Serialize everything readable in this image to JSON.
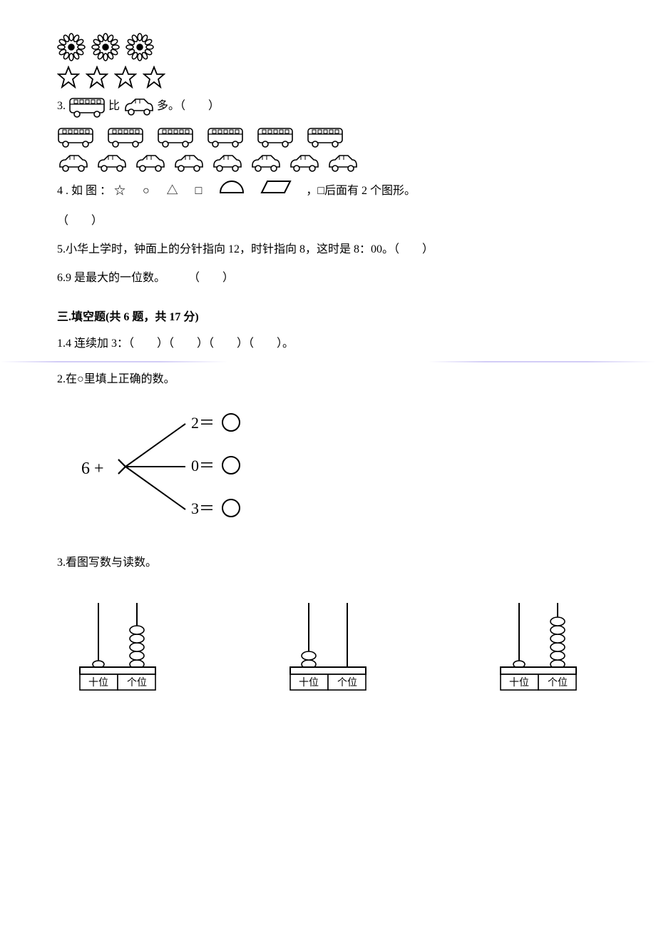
{
  "q2": {
    "flowers_count": 3,
    "stars_count": 4
  },
  "q3": {
    "prefix": "3.",
    "mid": "比",
    "suffix": "多。（　　）",
    "buses_count": 6,
    "cars_count": 8
  },
  "q4": {
    "text_left": "4.如图：☆　○　△　□",
    "text_right": "，□后面有 2 个图形。",
    "blank": "（　　）"
  },
  "q5": {
    "text": "5.小华上学时，钟面上的分针指向 12，时针指向 8，这时是 8：00。（　　）"
  },
  "q6": {
    "text": "6.9 是最大的一位数。　　　（　　）"
  },
  "section3": {
    "header": "三.填空题(共 6 题，共 17 分)",
    "q1": "1.4 连续加 3：（　　）（　　）（　　）（　　）。",
    "q2": "2.在○里填上正确的数。",
    "branch": {
      "left": "6 +",
      "top": "2＝",
      "mid": "0＝",
      "bot": "3＝"
    },
    "q3": "3.看图写数与读数。"
  },
  "abacus": {
    "labels": {
      "tens": "十位",
      "ones": "个位"
    },
    "items": [
      {
        "tens_beads": 0,
        "ones_beads": 5,
        "tens_empty_ring": true
      },
      {
        "tens_beads": 2,
        "ones_beads": 0,
        "tens_empty_ring": false
      },
      {
        "tens_beads": 0,
        "ones_beads": 6,
        "tens_empty_ring": true
      }
    ]
  },
  "colors": {
    "text": "#000000",
    "bg": "#ffffff",
    "accent": "#6b58e0"
  }
}
